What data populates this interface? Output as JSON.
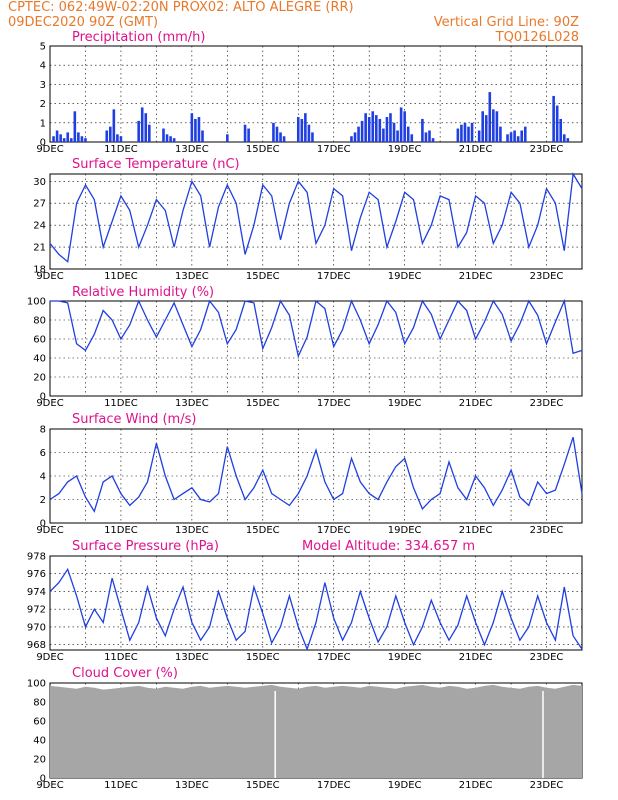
{
  "header": {
    "line1_left": "CPTEC:  062:49W-02:20N  PROX02: ALTO ALEGRE (RR)",
    "line2_left": "09DEC2020 90Z (GMT)",
    "line2_right": "Vertical Grid Line: 90Z",
    "line3_right": "TQ0126L028"
  },
  "colors": {
    "title": "#e0118c",
    "header": "#e8792b",
    "series": "#1f3fe0",
    "bars": "#1f3fe0",
    "cloud": "#a6a6a6"
  },
  "x_tick_labels": [
    "9DEC",
    "11DEC",
    "13DEC",
    "15DEC",
    "17DEC",
    "19DEC",
    "21DEC",
    "23DEC"
  ],
  "chart_data": [
    {
      "type": "bar",
      "title": "Precipitation (mm/h)",
      "ylim": [
        0,
        5
      ],
      "yticks": [
        0,
        1,
        2,
        3,
        4,
        5
      ],
      "x_range_days": [
        0,
        15
      ],
      "bars": [
        [
          0.1,
          0.3
        ],
        [
          0.2,
          0.6
        ],
        [
          0.3,
          0.4
        ],
        [
          0.4,
          0.2
        ],
        [
          0.5,
          0.5
        ],
        [
          0.6,
          0.2
        ],
        [
          0.7,
          1.6
        ],
        [
          0.8,
          0.5
        ],
        [
          0.9,
          0.3
        ],
        [
          1.0,
          0.2
        ],
        [
          1.6,
          0.6
        ],
        [
          1.7,
          0.8
        ],
        [
          1.8,
          1.7
        ],
        [
          1.9,
          0.4
        ],
        [
          2.0,
          0.3
        ],
        [
          2.5,
          1.1
        ],
        [
          2.6,
          1.8
        ],
        [
          2.7,
          1.5
        ],
        [
          2.8,
          0.9
        ],
        [
          3.2,
          0.7
        ],
        [
          3.3,
          0.4
        ],
        [
          3.4,
          0.3
        ],
        [
          3.5,
          0.2
        ],
        [
          4.0,
          1.5
        ],
        [
          4.1,
          1.2
        ],
        [
          4.2,
          1.3
        ],
        [
          4.3,
          0.6
        ],
        [
          5.0,
          0.4
        ],
        [
          5.5,
          0.9
        ],
        [
          5.6,
          0.7
        ],
        [
          6.3,
          1.0
        ],
        [
          6.4,
          0.8
        ],
        [
          6.5,
          0.5
        ],
        [
          6.6,
          0.3
        ],
        [
          7.0,
          1.3
        ],
        [
          7.1,
          1.2
        ],
        [
          7.2,
          1.5
        ],
        [
          7.3,
          0.9
        ],
        [
          7.4,
          0.5
        ],
        [
          8.5,
          0.3
        ],
        [
          8.6,
          0.5
        ],
        [
          8.7,
          0.8
        ],
        [
          8.8,
          1.1
        ],
        [
          8.9,
          1.5
        ],
        [
          9.0,
          1.3
        ],
        [
          9.1,
          1.6
        ],
        [
          9.2,
          1.4
        ],
        [
          9.3,
          1.2
        ],
        [
          9.4,
          0.7
        ],
        [
          9.5,
          1.3
        ],
        [
          9.6,
          1.5
        ],
        [
          9.7,
          1.0
        ],
        [
          9.8,
          0.6
        ],
        [
          9.9,
          1.8
        ],
        [
          10.0,
          1.6
        ],
        [
          10.1,
          0.8
        ],
        [
          10.2,
          0.4
        ],
        [
          10.5,
          1.2
        ],
        [
          10.6,
          0.5
        ],
        [
          10.7,
          0.6
        ],
        [
          10.8,
          0.2
        ],
        [
          11.5,
          0.7
        ],
        [
          11.6,
          0.9
        ],
        [
          11.7,
          1.0
        ],
        [
          11.8,
          0.8
        ],
        [
          11.9,
          1.0
        ],
        [
          12.1,
          0.6
        ],
        [
          12.2,
          1.6
        ],
        [
          12.3,
          1.4
        ],
        [
          12.4,
          2.6
        ],
        [
          12.5,
          1.7
        ],
        [
          12.6,
          1.6
        ],
        [
          12.7,
          0.8
        ],
        [
          12.9,
          0.4
        ],
        [
          13.0,
          0.5
        ],
        [
          13.1,
          0.6
        ],
        [
          13.2,
          0.3
        ],
        [
          13.3,
          0.6
        ],
        [
          13.4,
          0.8
        ],
        [
          14.2,
          2.4
        ],
        [
          14.3,
          1.9
        ],
        [
          14.4,
          1.2
        ],
        [
          14.5,
          0.4
        ],
        [
          14.6,
          0.2
        ]
      ]
    },
    {
      "type": "line",
      "title": "Surface Temperature (nC)",
      "ylim": [
        18,
        31
      ],
      "yticks": [
        18,
        21,
        24,
        27,
        30
      ],
      "x": [
        0,
        0.25,
        0.5,
        0.75,
        1.0,
        1.25,
        1.5,
        1.75,
        2.0,
        2.25,
        2.5,
        2.75,
        3.0,
        3.25,
        3.5,
        3.75,
        4.0,
        4.25,
        4.5,
        4.75,
        5.0,
        5.25,
        5.5,
        5.75,
        6.0,
        6.25,
        6.5,
        6.75,
        7.0,
        7.25,
        7.5,
        7.75,
        8.0,
        8.25,
        8.5,
        8.75,
        9.0,
        9.25,
        9.5,
        9.75,
        10.0,
        10.25,
        10.5,
        10.75,
        11.0,
        11.25,
        11.5,
        11.75,
        12.0,
        12.25,
        12.5,
        12.75,
        13.0,
        13.25,
        13.5,
        13.75,
        14.0,
        14.25,
        14.5,
        14.75,
        15.0
      ],
      "values": [
        21.5,
        20.0,
        19.0,
        27.0,
        29.5,
        27.5,
        21.0,
        24.5,
        28.0,
        26.0,
        21.0,
        24.0,
        27.5,
        26.0,
        21.0,
        26.0,
        30.0,
        28.0,
        21.0,
        26.5,
        29.5,
        27.0,
        20.0,
        24.0,
        29.5,
        28.0,
        22.0,
        27.0,
        30.0,
        28.5,
        21.5,
        24.0,
        29.0,
        28.0,
        20.5,
        25.0,
        28.5,
        27.5,
        21.0,
        24.5,
        28.5,
        27.5,
        21.5,
        24.0,
        28.0,
        27.5,
        21.0,
        23.0,
        28.0,
        27.0,
        21.5,
        24.0,
        28.5,
        27.0,
        21.0,
        24.0,
        29.0,
        27.0,
        20.5,
        31.5,
        29.0
      ]
    },
    {
      "type": "line",
      "title": "Relative Humidity (%)",
      "ylim": [
        0,
        100
      ],
      "yticks": [
        0,
        20,
        40,
        60,
        80,
        100
      ],
      "x": [
        0,
        0.25,
        0.5,
        0.75,
        1.0,
        1.25,
        1.5,
        1.75,
        2.0,
        2.25,
        2.5,
        2.75,
        3.0,
        3.25,
        3.5,
        3.75,
        4.0,
        4.25,
        4.5,
        4.75,
        5.0,
        5.25,
        5.5,
        5.75,
        6.0,
        6.25,
        6.5,
        6.75,
        7.0,
        7.25,
        7.5,
        7.75,
        8.0,
        8.25,
        8.5,
        8.75,
        9.0,
        9.25,
        9.5,
        9.75,
        10.0,
        10.25,
        10.5,
        10.75,
        11.0,
        11.25,
        11.5,
        11.75,
        12.0,
        12.25,
        12.5,
        12.75,
        13.0,
        13.25,
        13.5,
        13.75,
        14.0,
        14.25,
        14.5,
        14.75,
        15.0
      ],
      "values": [
        100,
        100,
        98,
        55,
        48,
        65,
        90,
        80,
        60,
        75,
        100,
        80,
        62,
        80,
        98,
        75,
        52,
        70,
        100,
        88,
        55,
        70,
        100,
        98,
        50,
        72,
        100,
        85,
        42,
        62,
        100,
        92,
        52,
        70,
        100,
        80,
        55,
        75,
        100,
        88,
        55,
        72,
        100,
        86,
        60,
        80,
        100,
        90,
        60,
        78,
        100,
        86,
        58,
        76,
        100,
        85,
        55,
        78,
        100,
        45,
        48
      ]
    },
    {
      "type": "line",
      "title": "Surface Wind (m/s)",
      "ylim": [
        0,
        8
      ],
      "yticks": [
        0,
        2,
        4,
        6,
        8
      ],
      "x": [
        0,
        0.25,
        0.5,
        0.75,
        1.0,
        1.25,
        1.5,
        1.75,
        2.0,
        2.25,
        2.5,
        2.75,
        3.0,
        3.25,
        3.5,
        3.75,
        4.0,
        4.25,
        4.5,
        4.75,
        5.0,
        5.25,
        5.5,
        5.75,
        6.0,
        6.25,
        6.5,
        6.75,
        7.0,
        7.25,
        7.5,
        7.75,
        8.0,
        8.25,
        8.5,
        8.75,
        9.0,
        9.25,
        9.5,
        9.75,
        10.0,
        10.25,
        10.5,
        10.75,
        11.0,
        11.25,
        11.5,
        11.75,
        12.0,
        12.25,
        12.5,
        12.75,
        13.0,
        13.25,
        13.5,
        13.75,
        14.0,
        14.25,
        14.5,
        14.75,
        15.0
      ],
      "values": [
        2.0,
        2.5,
        3.5,
        4.0,
        2.2,
        1.0,
        3.5,
        4.0,
        2.5,
        1.5,
        2.2,
        3.5,
        6.8,
        4.0,
        2.0,
        2.5,
        3.0,
        2.0,
        1.8,
        2.5,
        6.5,
        4.0,
        2.0,
        3.0,
        4.5,
        2.5,
        2.0,
        1.5,
        2.5,
        4.0,
        6.2,
        3.5,
        2.0,
        2.5,
        5.5,
        3.5,
        2.5,
        2.0,
        3.5,
        4.8,
        5.5,
        3.0,
        1.2,
        2.0,
        2.5,
        5.2,
        3.0,
        2.0,
        4.0,
        3.0,
        1.5,
        2.8,
        4.5,
        2.2,
        1.5,
        3.5,
        2.5,
        2.8,
        5.0,
        7.3,
        2.5
      ]
    },
    {
      "type": "line",
      "title": "Surface Pressure (hPa)",
      "subtitle": "Model Altitude: 334.657 m",
      "ylim": [
        967.4,
        978
      ],
      "yticks": [
        968,
        970,
        972,
        974,
        976,
        978
      ],
      "x": [
        0,
        0.25,
        0.5,
        0.75,
        1.0,
        1.25,
        1.5,
        1.75,
        2.0,
        2.25,
        2.5,
        2.75,
        3.0,
        3.25,
        3.5,
        3.75,
        4.0,
        4.25,
        4.5,
        4.75,
        5.0,
        5.25,
        5.5,
        5.75,
        6.0,
        6.25,
        6.5,
        6.75,
        7.0,
        7.25,
        7.5,
        7.75,
        8.0,
        8.25,
        8.5,
        8.75,
        9.0,
        9.25,
        9.5,
        9.75,
        10.0,
        10.25,
        10.5,
        10.75,
        11.0,
        11.25,
        11.5,
        11.75,
        12.0,
        12.25,
        12.5,
        12.75,
        13.0,
        13.25,
        13.5,
        13.75,
        14.0,
        14.25,
        14.5,
        14.75,
        15.0
      ],
      "values": [
        974.0,
        975.0,
        976.5,
        973.5,
        970.0,
        972.0,
        970.5,
        975.5,
        972.0,
        968.5,
        970.5,
        974.5,
        971.0,
        969.0,
        972.0,
        974.5,
        970.5,
        968.5,
        970.0,
        974.0,
        971.0,
        968.5,
        969.5,
        974.5,
        971.5,
        968.2,
        970.0,
        973.5,
        970.0,
        967.5,
        970.5,
        975.0,
        971.0,
        968.5,
        970.5,
        974.0,
        971.0,
        968.3,
        970.0,
        973.5,
        970.5,
        968.0,
        970.0,
        973.0,
        970.5,
        968.5,
        970.2,
        973.5,
        970.5,
        968.0,
        970.5,
        974.0,
        971.0,
        968.5,
        970.0,
        973.5,
        970.5,
        968.5,
        974.5,
        969.0,
        967.5
      ]
    },
    {
      "type": "area",
      "title": "Cloud Cover (%)",
      "ylim": [
        0,
        100
      ],
      "yticks": [
        0,
        20,
        40,
        60,
        80,
        100
      ],
      "x": [
        0,
        0.25,
        0.5,
        0.75,
        1.0,
        1.25,
        1.5,
        1.75,
        2.0,
        2.25,
        2.5,
        2.75,
        3.0,
        3.25,
        3.5,
        3.75,
        4.0,
        4.25,
        4.5,
        4.75,
        5.0,
        5.25,
        5.5,
        5.75,
        6.0,
        6.25,
        6.5,
        6.75,
        7.0,
        7.25,
        7.5,
        7.75,
        8.0,
        8.25,
        8.5,
        8.75,
        9.0,
        9.25,
        9.5,
        9.75,
        10.0,
        10.25,
        10.5,
        10.75,
        11.0,
        11.25,
        11.5,
        11.75,
        12.0,
        12.25,
        12.5,
        12.75,
        13.0,
        13.25,
        13.5,
        13.75,
        14.0,
        14.25,
        14.5,
        14.75,
        15.0
      ],
      "values": [
        97,
        96,
        95,
        94,
        96,
        95,
        93,
        94,
        95,
        96,
        97,
        95,
        94,
        96,
        95,
        94,
        96,
        97,
        95,
        96,
        97,
        96,
        95,
        96,
        97,
        98,
        96,
        95,
        94,
        96,
        97,
        95,
        96,
        97,
        96,
        95,
        97,
        96,
        95,
        94,
        96,
        97,
        98,
        96,
        95,
        97,
        96,
        94,
        95,
        97,
        98,
        96,
        95,
        94,
        96,
        97,
        95,
        94,
        96,
        98,
        97
      ]
    }
  ]
}
